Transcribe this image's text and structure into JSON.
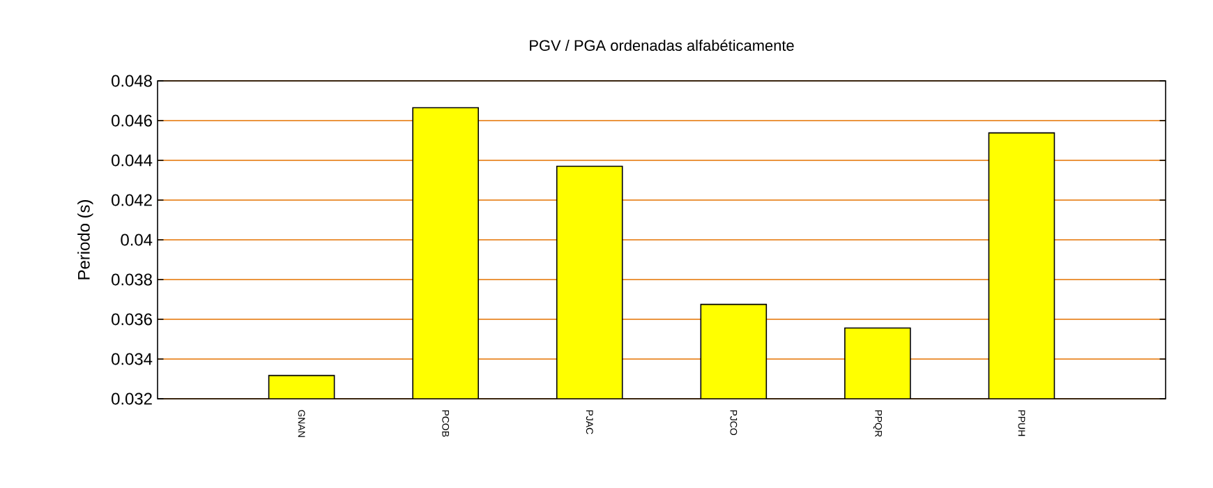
{
  "chart_data": {
    "type": "bar",
    "title": "PGV / PGA ordenadas alfabéticamente",
    "ylabel": "Periodo (s)",
    "categories": [
      "GNAN",
      "PCOB",
      "PJAC",
      "PJCO",
      "PPQR",
      "PPUH"
    ],
    "values": [
      0.03317,
      0.04665,
      0.0437,
      0.03675,
      0.03556,
      0.04538
    ],
    "color": "#ffff00",
    "ylim": [
      0.032,
      0.048
    ],
    "yticks": [
      0.032,
      0.034,
      0.036,
      0.038,
      0.04,
      0.042,
      0.044,
      0.046,
      0.048
    ],
    "grid": "y"
  }
}
